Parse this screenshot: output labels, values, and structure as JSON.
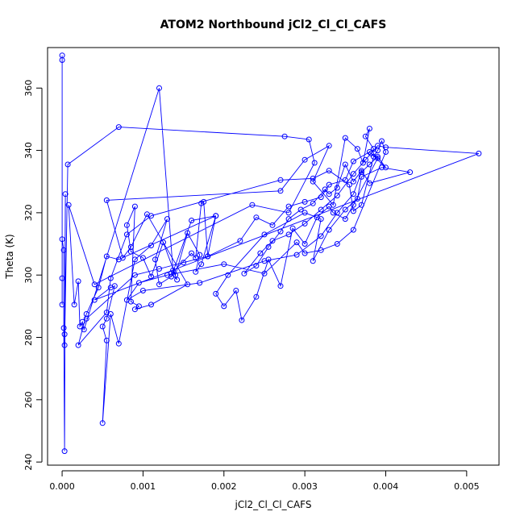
{
  "chart_data": {
    "type": "line",
    "title": "ATOM2 Northbound jCl2_Cl_Cl_CAFS",
    "xlabel": "jCl2_Cl_Cl_CAFS",
    "ylabel": "Theta (K)",
    "xlim": [
      -0.00018,
      0.0054
    ],
    "ylim": [
      239,
      373
    ],
    "x_ticks": [
      0,
      0.001,
      0.002,
      0.003,
      0.004,
      0.005
    ],
    "x_tick_labels": [
      "0.000",
      "0.001",
      "0.002",
      "0.003",
      "0.004",
      "0.005"
    ],
    "y_ticks": [
      240,
      260,
      280,
      300,
      320,
      340,
      360
    ],
    "y_tick_labels": [
      "240",
      "260",
      "280",
      "300",
      "320",
      "340",
      "360"
    ],
    "grid": false,
    "markers": "open-circle",
    "colors": {
      "series": "#0000ff",
      "axes": "#000000",
      "background": "#ffffff"
    },
    "series": [
      {
        "points": [
          [
            0.0,
            370.5
          ],
          [
            0.0,
            369.0
          ],
          [
            0.0,
            299.0
          ],
          [
            0.0,
            290.5
          ],
          [
            0.0,
            311.5
          ],
          [
            2e-05,
            308.0
          ],
          [
            2e-05,
            283.0
          ],
          [
            3e-05,
            243.5
          ],
          [
            4e-05,
            326.0
          ],
          [
            3e-05,
            281.0
          ],
          [
            3e-05,
            277.5
          ],
          [
            7e-05,
            335.5
          ],
          [
            0.0007,
            347.5
          ],
          [
            0.00275,
            344.5
          ],
          [
            0.00305,
            343.5
          ],
          [
            0.00312,
            336.0
          ],
          [
            0.0028,
            320.0
          ],
          [
            0.00235,
            322.5
          ],
          [
            0.0004,
            297.0
          ],
          [
            8e-05,
            322.5
          ],
          [
            0.00015,
            290.5
          ],
          [
            0.0002,
            298.0
          ],
          [
            0.00022,
            283.5
          ],
          [
            0.00025,
            285.0
          ],
          [
            0.00027,
            282.5
          ],
          [
            0.0012,
            360.0
          ],
          [
            0.00137,
            301.5
          ],
          [
            0.00142,
            298.5
          ],
          [
            0.00135,
            300.5
          ],
          [
            0.0016,
            307.0
          ],
          [
            0.00165,
            305.5
          ],
          [
            0.00172,
            323.0
          ],
          [
            0.00175,
            323.5
          ],
          [
            0.0018,
            306.0
          ],
          [
            0.0019,
            319.0
          ],
          [
            0.00172,
            303.5
          ],
          [
            0.00165,
            301.0
          ],
          [
            0.0017,
            306.5
          ],
          [
            0.00155,
            313.5
          ],
          [
            0.0014,
            300.0
          ],
          [
            0.00125,
            310.5
          ],
          [
            0.0011,
            299.5
          ],
          [
            0.001,
            305.5
          ],
          [
            0.00085,
            307.5
          ],
          [
            0.0008,
            316.0
          ],
          [
            0.0009,
            322.0
          ],
          [
            0.00085,
            291.5
          ],
          [
            0.00095,
            290.0
          ],
          [
            0.0009,
            289.0
          ],
          [
            0.0011,
            290.5
          ],
          [
            0.00155,
            297.0
          ],
          [
            0.00105,
            319.5
          ],
          [
            0.00085,
            309.0
          ],
          [
            0.00075,
            305.5
          ],
          [
            0.00055,
            324.0
          ],
          [
            0.0027,
            327.0
          ],
          [
            0.003,
            337.0
          ],
          [
            0.0033,
            341.5
          ],
          [
            0.0031,
            330.0
          ],
          [
            0.00335,
            322.5
          ],
          [
            0.0035,
            344.0
          ],
          [
            0.00365,
            340.5
          ],
          [
            0.00372,
            336.0
          ],
          [
            0.0038,
            347.0
          ],
          [
            0.00375,
            344.5
          ],
          [
            0.00385,
            340.5
          ],
          [
            0.00382,
            339.0
          ],
          [
            0.0039,
            337.5
          ],
          [
            0.0036,
            322.5
          ],
          [
            0.0035,
            318.0
          ],
          [
            0.00335,
            320.0
          ],
          [
            0.0033,
            322.0
          ],
          [
            0.00315,
            318.5
          ],
          [
            0.003,
            310.0
          ],
          [
            0.00285,
            315.0
          ],
          [
            0.0027,
            296.5
          ],
          [
            0.00255,
            305.0
          ],
          [
            0.0024,
            293.0
          ],
          [
            0.00222,
            285.5
          ],
          [
            0.00215,
            295.0
          ],
          [
            0.002,
            290.0
          ],
          [
            0.0019,
            294.0
          ],
          [
            0.00205,
            300.0
          ],
          [
            0.0025,
            313.0
          ],
          [
            0.003,
            320.0
          ],
          [
            0.0032,
            318.0
          ],
          [
            0.0031,
            304.5
          ],
          [
            0.0033,
            314.5
          ],
          [
            0.0035,
            321.0
          ],
          [
            0.00365,
            324.5
          ],
          [
            0.0037,
            331.5
          ],
          [
            0.00395,
            334.5
          ],
          [
            0.0043,
            333.0
          ],
          [
            0.0038,
            329.5
          ],
          [
            0.0037,
            333.5
          ],
          [
            0.0036,
            330.0
          ],
          [
            0.0035,
            335.5
          ],
          [
            0.0034,
            328.0
          ],
          [
            0.0033,
            326.0
          ],
          [
            0.00325,
            327.5
          ],
          [
            0.0031,
            323.0
          ],
          [
            0.00295,
            321.0
          ],
          [
            0.0028,
            318.0
          ],
          [
            0.0027,
            314.0
          ],
          [
            0.00255,
            309.0
          ],
          [
            0.0024,
            303.0
          ],
          [
            0.00225,
            300.5
          ],
          [
            0.00245,
            307.0
          ],
          [
            0.0026,
            311.0
          ],
          [
            0.0028,
            313.0
          ],
          [
            0.003,
            316.5
          ],
          [
            0.0032,
            321.0
          ],
          [
            0.0034,
            325.5
          ],
          [
            0.0036,
            332.5
          ],
          [
            0.00375,
            337.0
          ],
          [
            0.0039,
            341.5
          ],
          [
            0.004,
            341.0
          ],
          [
            0.00515,
            339.0
          ],
          [
            0.0004,
            292.0
          ],
          [
            0.0006,
            296.0
          ],
          [
            0.00065,
            296.5
          ],
          [
            0.00055,
            286.0
          ],
          [
            0.0005,
            283.5
          ],
          [
            0.00055,
            279.0
          ],
          [
            0.0005,
            252.5
          ],
          [
            0.0006,
            287.5
          ],
          [
            0.0007,
            278.0
          ],
          [
            0.0009,
            305.0
          ],
          [
            0.0011,
            309.5
          ],
          [
            0.0013,
            318.0
          ],
          [
            0.00115,
            305.0
          ],
          [
            0.0012,
            297.0
          ],
          [
            0.00135,
            299.5
          ],
          [
            0.0016,
            317.5
          ],
          [
            0.0019,
            319.0
          ],
          [
            0.0007,
            305.0
          ],
          [
            0.00055,
            306.0
          ],
          [
            0.00045,
            296.0
          ],
          [
            0.0003,
            287.5
          ],
          [
            0.0002,
            277.5
          ],
          [
            0.00055,
            288.0
          ],
          [
            0.0006,
            299.0
          ],
          [
            0.0008,
            313.0
          ],
          [
            0.0011,
            319.0
          ],
          [
            0.0027,
            330.5
          ],
          [
            0.0031,
            331.0
          ],
          [
            0.0033,
            333.5
          ],
          [
            0.00355,
            329.0
          ],
          [
            0.0036,
            320.5
          ],
          [
            0.0037,
            322.5
          ],
          [
            0.00385,
            338.0
          ],
          [
            0.0039,
            340.0
          ],
          [
            0.00395,
            343.0
          ],
          [
            0.004,
            339.5
          ],
          [
            0.0036,
            314.5
          ],
          [
            0.0034,
            310.0
          ],
          [
            0.0032,
            308.0
          ],
          [
            0.003,
            307.0
          ],
          [
            0.0029,
            310.5
          ],
          [
            0.0025,
            300.5
          ],
          [
            0.002,
            303.5
          ],
          [
            0.0013,
            300.0
          ],
          [
            0.00095,
            297.5
          ],
          [
            0.0008,
            292.0
          ],
          [
            0.001,
            295.0
          ],
          [
            0.0017,
            297.5
          ],
          [
            0.0025,
            304.5
          ],
          [
            0.0029,
            306.5
          ],
          [
            0.0032,
            312.5
          ],
          [
            0.0034,
            320.0
          ],
          [
            0.0036,
            326.0
          ],
          [
            0.0037,
            333.0
          ],
          [
            0.0038,
            335.5
          ],
          [
            0.0039,
            338.0
          ],
          [
            0.004,
            334.5
          ],
          [
            0.0038,
            339.5
          ],
          [
            0.0036,
            336.5
          ],
          [
            0.0035,
            330.5
          ],
          [
            0.0033,
            329.0
          ],
          [
            0.0032,
            325.0
          ],
          [
            0.003,
            323.5
          ],
          [
            0.0028,
            322.0
          ],
          [
            0.0026,
            316.0
          ],
          [
            0.0024,
            318.5
          ],
          [
            0.0022,
            311.0
          ],
          [
            0.0018,
            306.0
          ],
          [
            0.0015,
            304.0
          ],
          [
            0.0012,
            302.0
          ],
          [
            0.0009,
            300.0
          ],
          [
            0.0003,
            286.0
          ]
        ]
      }
    ]
  }
}
